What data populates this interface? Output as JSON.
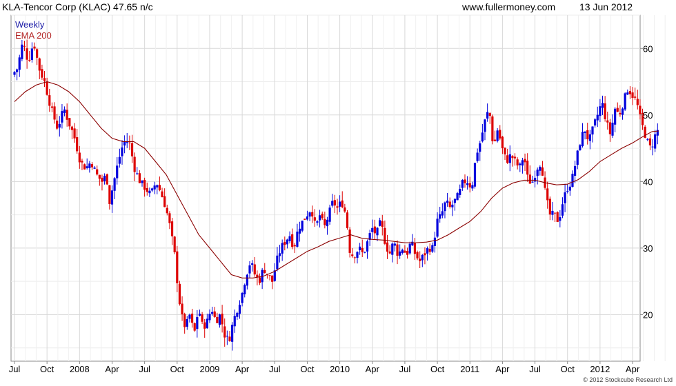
{
  "header": {
    "title": "KLA-Tencor Corp (KLAC) 47.65 n/c",
    "site": "www.fullermoney.com",
    "date": "13 Jun 2012"
  },
  "copyright": "© 2012 Stockcube Research Ltd",
  "colors": {
    "up": "#0000dd",
    "down": "#dd0000",
    "ema": "#8b0000",
    "grid": "#d8d8d8"
  },
  "chart_data": {
    "type": "candlestick",
    "legend": [
      {
        "name": "Weekly",
        "color": "#1a1aa6"
      },
      {
        "name": "EMA 200",
        "color": "#b22222"
      }
    ],
    "ylim": [
      13,
      65
    ],
    "y_ticks": [
      20,
      30,
      40,
      50,
      60
    ],
    "x_range": [
      "2007-07",
      "2012-06"
    ],
    "x_ticks": [
      {
        "label": "Jul",
        "month": 0
      },
      {
        "label": "Oct",
        "month": 3
      },
      {
        "label": "2008",
        "month": 6
      },
      {
        "label": "Apr",
        "month": 9
      },
      {
        "label": "Jul",
        "month": 12
      },
      {
        "label": "Oct",
        "month": 15
      },
      {
        "label": "2009",
        "month": 18
      },
      {
        "label": "Apr",
        "month": 21
      },
      {
        "label": "Jul",
        "month": 24
      },
      {
        "label": "Oct",
        "month": 27
      },
      {
        "label": "2010",
        "month": 30
      },
      {
        "label": "Apr",
        "month": 33
      },
      {
        "label": "Jul",
        "month": 36
      },
      {
        "label": "Oct",
        "month": 39
      },
      {
        "label": "2011",
        "month": 42
      },
      {
        "label": "Apr",
        "month": 45
      },
      {
        "label": "Jul",
        "month": 48
      },
      {
        "label": "Oct",
        "month": 51
      },
      {
        "label": "2012",
        "month": 54
      },
      {
        "label": "Apr",
        "month": 57
      }
    ],
    "price_path": [
      [
        0.0,
        56
      ],
      [
        0.5,
        57
      ],
      [
        1.0,
        61
      ],
      [
        1.5,
        58
      ],
      [
        2.0,
        61
      ],
      [
        2.5,
        57
      ],
      [
        3.0,
        55
      ],
      [
        3.6,
        51
      ],
      [
        4.2,
        48
      ],
      [
        4.8,
        51
      ],
      [
        5.2,
        49
      ],
      [
        5.7,
        47
      ],
      [
        6.3,
        43
      ],
      [
        6.8,
        42
      ],
      [
        7.3,
        43
      ],
      [
        7.8,
        41
      ],
      [
        8.3,
        40
      ],
      [
        8.7,
        41
      ],
      [
        9.0,
        37
      ],
      [
        9.4,
        40
      ],
      [
        9.8,
        43
      ],
      [
        10.3,
        46
      ],
      [
        10.8,
        46
      ],
      [
        11.3,
        42
      ],
      [
        11.8,
        40
      ],
      [
        12.3,
        39
      ],
      [
        12.8,
        38
      ],
      [
        13.3,
        40
      ],
      [
        13.8,
        38
      ],
      [
        14.2,
        36
      ],
      [
        14.6,
        33
      ],
      [
        15.0,
        29
      ],
      [
        15.3,
        24
      ],
      [
        15.6,
        20
      ],
      [
        16.0,
        18
      ],
      [
        16.4,
        20
      ],
      [
        16.8,
        17
      ],
      [
        17.2,
        21
      ],
      [
        17.6,
        18
      ],
      [
        18.0,
        19
      ],
      [
        18.4,
        21
      ],
      [
        18.8,
        19
      ],
      [
        19.2,
        20
      ],
      [
        19.6,
        17
      ],
      [
        20.0,
        16
      ],
      [
        20.4,
        19
      ],
      [
        20.8,
        21
      ],
      [
        21.2,
        23
      ],
      [
        21.6,
        26
      ],
      [
        22.0,
        28
      ],
      [
        22.4,
        26
      ],
      [
        22.8,
        25
      ],
      [
        23.2,
        27
      ],
      [
        23.6,
        26
      ],
      [
        24.0,
        25
      ],
      [
        24.4,
        28
      ],
      [
        24.8,
        30
      ],
      [
        25.2,
        31
      ],
      [
        25.6,
        32
      ],
      [
        26.0,
        30
      ],
      [
        26.4,
        33
      ],
      [
        26.8,
        34
      ],
      [
        27.2,
        35
      ],
      [
        27.6,
        36
      ],
      [
        28.0,
        33
      ],
      [
        28.4,
        35
      ],
      [
        28.8,
        33
      ],
      [
        29.2,
        35
      ],
      [
        29.6,
        37
      ],
      [
        30.0,
        36
      ],
      [
        30.4,
        37
      ],
      [
        30.8,
        35
      ],
      [
        31.2,
        29
      ],
      [
        31.6,
        29
      ],
      [
        32.0,
        30
      ],
      [
        32.4,
        29
      ],
      [
        32.8,
        31
      ],
      [
        33.2,
        33
      ],
      [
        33.6,
        32
      ],
      [
        34.0,
        34
      ],
      [
        34.4,
        31
      ],
      [
        34.8,
        29
      ],
      [
        35.2,
        31
      ],
      [
        35.6,
        29
      ],
      [
        36.0,
        30
      ],
      [
        36.4,
        29
      ],
      [
        36.8,
        31
      ],
      [
        37.2,
        29
      ],
      [
        37.6,
        28
      ],
      [
        38.0,
        29
      ],
      [
        38.4,
        30
      ],
      [
        38.8,
        30
      ],
      [
        39.2,
        34
      ],
      [
        39.6,
        35
      ],
      [
        40.0,
        37
      ],
      [
        40.4,
        36
      ],
      [
        40.8,
        37
      ],
      [
        41.2,
        38
      ],
      [
        41.6,
        40
      ],
      [
        42.0,
        40
      ],
      [
        42.4,
        39
      ],
      [
        42.8,
        44
      ],
      [
        43.2,
        46
      ],
      [
        43.6,
        49
      ],
      [
        44.0,
        51
      ],
      [
        44.4,
        45
      ],
      [
        44.8,
        48
      ],
      [
        45.2,
        45
      ],
      [
        45.6,
        43
      ],
      [
        46.0,
        44
      ],
      [
        46.4,
        43
      ],
      [
        46.8,
        42
      ],
      [
        47.2,
        44
      ],
      [
        47.6,
        40
      ],
      [
        48.0,
        40
      ],
      [
        48.4,
        42
      ],
      [
        48.8,
        43
      ],
      [
        49.2,
        38
      ],
      [
        49.6,
        35
      ],
      [
        50.0,
        35
      ],
      [
        50.4,
        34
      ],
      [
        50.8,
        37
      ],
      [
        51.2,
        39
      ],
      [
        51.6,
        40
      ],
      [
        52.0,
        43
      ],
      [
        52.4,
        46
      ],
      [
        52.8,
        48
      ],
      [
        53.2,
        46
      ],
      [
        53.6,
        48
      ],
      [
        54.0,
        50
      ],
      [
        54.4,
        52
      ],
      [
        54.8,
        49
      ],
      [
        55.2,
        47
      ],
      [
        55.6,
        51
      ],
      [
        56.0,
        50
      ],
      [
        56.4,
        52
      ],
      [
        56.8,
        54
      ],
      [
        57.2,
        53
      ],
      [
        57.6,
        52
      ],
      [
        58.0,
        49
      ],
      [
        58.4,
        47
      ],
      [
        58.8,
        45
      ],
      [
        59.2,
        46
      ],
      [
        59.4,
        47.65
      ]
    ],
    "ema200_path": [
      [
        0.0,
        52
      ],
      [
        1.0,
        53.5
      ],
      [
        2.0,
        54.5
      ],
      [
        3.0,
        55
      ],
      [
        4.0,
        54.5
      ],
      [
        5.0,
        53.5
      ],
      [
        6.0,
        52
      ],
      [
        7.0,
        50
      ],
      [
        8.0,
        48
      ],
      [
        9.0,
        46.5
      ],
      [
        10.0,
        46
      ],
      [
        11.0,
        46
      ],
      [
        12.0,
        45
      ],
      [
        13.0,
        43
      ],
      [
        14.0,
        41
      ],
      [
        15.0,
        38
      ],
      [
        16.0,
        35
      ],
      [
        17.0,
        32
      ],
      [
        18.0,
        30
      ],
      [
        19.0,
        28
      ],
      [
        20.0,
        26
      ],
      [
        21.0,
        25.5
      ],
      [
        22.0,
        25.5
      ],
      [
        23.0,
        25.8
      ],
      [
        24.0,
        26.5
      ],
      [
        25.0,
        27.5
      ],
      [
        26.0,
        28.5
      ],
      [
        27.0,
        29.5
      ],
      [
        28.0,
        30.2
      ],
      [
        29.0,
        31
      ],
      [
        30.0,
        31.5
      ],
      [
        31.0,
        32
      ],
      [
        32.0,
        31.5
      ],
      [
        33.0,
        31.3
      ],
      [
        34.0,
        31.2
      ],
      [
        35.0,
        31
      ],
      [
        36.0,
        30.8
      ],
      [
        37.0,
        30.8
      ],
      [
        38.0,
        30.9
      ],
      [
        39.0,
        31.2
      ],
      [
        40.0,
        32
      ],
      [
        41.0,
        33
      ],
      [
        42.0,
        34
      ],
      [
        43.0,
        35.5
      ],
      [
        44.0,
        37.5
      ],
      [
        45.0,
        39
      ],
      [
        46.0,
        39.8
      ],
      [
        47.0,
        40.2
      ],
      [
        48.0,
        40.2
      ],
      [
        49.0,
        39.8
      ],
      [
        50.0,
        39.5
      ],
      [
        51.0,
        39.6
      ],
      [
        52.0,
        40.3
      ],
      [
        53.0,
        41.5
      ],
      [
        54.0,
        43
      ],
      [
        55.0,
        44
      ],
      [
        56.0,
        45
      ],
      [
        57.0,
        45.8
      ],
      [
        58.0,
        46.8
      ],
      [
        58.8,
        47.5
      ],
      [
        59.4,
        47.6
      ]
    ]
  }
}
